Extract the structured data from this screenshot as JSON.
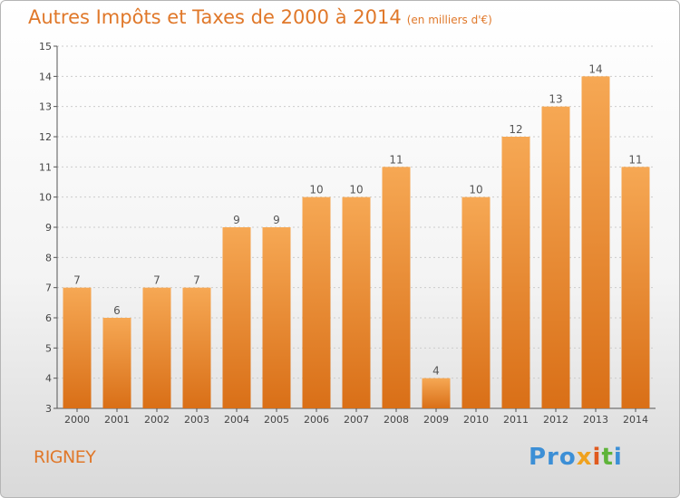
{
  "title": "Autres Impôts et Taxes de 2000 à 2014",
  "subtitle": "(en milliers d'€)",
  "commune": "RIGNEY",
  "brand": {
    "text": "Proxiti",
    "parts": [
      "Pro",
      "x",
      "i",
      "t",
      "i"
    ]
  },
  "colors": {
    "title": "#e0782a",
    "bar_light": "#f6a854",
    "bar_dark": "#d96f17",
    "axis": "#555555",
    "grid": "#cccccc"
  },
  "chart_data": {
    "type": "bar",
    "categories": [
      "2000",
      "2001",
      "2002",
      "2003",
      "2004",
      "2005",
      "2006",
      "2007",
      "2008",
      "2009",
      "2010",
      "2011",
      "2012",
      "2013",
      "2014"
    ],
    "values": [
      7,
      6,
      7,
      7,
      9,
      9,
      10,
      10,
      11,
      4,
      10,
      12,
      13,
      14,
      11
    ],
    "ylim": [
      3,
      15
    ],
    "yticks": [
      3,
      4,
      5,
      6,
      7,
      8,
      9,
      10,
      11,
      12,
      13,
      14,
      15
    ],
    "grid": "horizontal dashed",
    "legend": "none"
  }
}
